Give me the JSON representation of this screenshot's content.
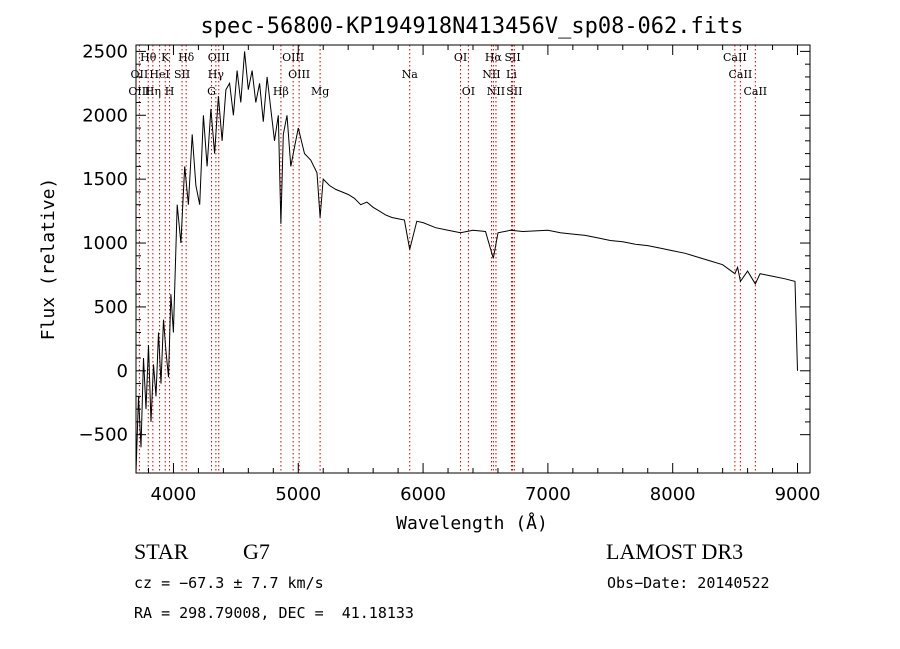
{
  "chart_data": {
    "type": "line",
    "title": "spec-56800-KP194918N413456V_sp08-062.fits",
    "xlabel": "Wavelength (Å)",
    "ylabel": "Flux (relative)",
    "xlim": [
      3700,
      9100
    ],
    "ylim": [
      -800,
      2550
    ],
    "xticks": [
      "4000",
      "5000",
      "6000",
      "7000",
      "8000",
      "9000"
    ],
    "yticks": [
      "−500",
      "0",
      "500",
      "1000",
      "1500",
      "2000",
      "2500"
    ],
    "grid": false,
    "series": [
      {
        "x": [
          3700,
          3720,
          3740,
          3760,
          3780,
          3800,
          3820,
          3840,
          3860,
          3880,
          3900,
          3920,
          3940,
          3960,
          3980,
          4000,
          4030,
          4060,
          4090,
          4120,
          4150,
          4180,
          4210,
          4240,
          4270,
          4300,
          4330,
          4360,
          4390,
          4420,
          4450,
          4480,
          4510,
          4540,
          4570,
          4600,
          4630,
          4660,
          4690,
          4720,
          4750,
          4780,
          4810,
          4840,
          4861,
          4880,
          4910,
          4940,
          4970,
          5000,
          5050,
          5100,
          5150,
          5175,
          5200,
          5250,
          5300,
          5350,
          5400,
          5450,
          5500,
          5550,
          5600,
          5650,
          5700,
          5750,
          5800,
          5850,
          5893,
          5950,
          6000,
          6100,
          6200,
          6300,
          6400,
          6500,
          6563,
          6600,
          6700,
          6800,
          6900,
          7000,
          7100,
          7200,
          7300,
          7400,
          7500,
          7600,
          7700,
          7800,
          7900,
          8000,
          8100,
          8200,
          8300,
          8400,
          8498,
          8520,
          8542,
          8600,
          8662,
          8700,
          8800,
          8900,
          8980,
          9000
        ],
        "y": [
          -800,
          -200,
          -600,
          100,
          -300,
          200,
          -400,
          50,
          -200,
          300,
          -100,
          400,
          150,
          -50,
          600,
          300,
          1300,
          1000,
          1600,
          1300,
          1850,
          1450,
          1300,
          2000,
          1600,
          2050,
          1700,
          2150,
          1800,
          2200,
          2250,
          2000,
          2350,
          2100,
          2500,
          2200,
          2350,
          2100,
          2250,
          1950,
          2300,
          2050,
          1800,
          2000,
          1150,
          1850,
          2000,
          1600,
          1750,
          1900,
          1700,
          1650,
          1550,
          1200,
          1500,
          1450,
          1420,
          1400,
          1380,
          1350,
          1300,
          1320,
          1280,
          1250,
          1220,
          1200,
          1190,
          1180,
          950,
          1170,
          1160,
          1120,
          1100,
          1080,
          1100,
          1090,
          880,
          1080,
          1100,
          1090,
          1095,
          1100,
          1080,
          1070,
          1060,
          1040,
          1020,
          1010,
          990,
          980,
          960,
          940,
          920,
          890,
          860,
          830,
          760,
          810,
          700,
          780,
          680,
          760,
          740,
          720,
          700,
          0
        ]
      }
    ],
    "line_labels": [
      {
        "text": "Hθ",
        "x": 3798,
        "row": 0
      },
      {
        "text": "K",
        "x": 3934,
        "row": 0
      },
      {
        "text": "Hδ",
        "x": 4102,
        "row": 0
      },
      {
        "text": "OIII",
        "x": 4363,
        "row": 0
      },
      {
        "text": "OIII",
        "x": 4959,
        "row": 0
      },
      {
        "text": "OI",
        "x": 6300,
        "row": 0
      },
      {
        "text": "Hα",
        "x": 6563,
        "row": 0
      },
      {
        "text": "SII",
        "x": 6717,
        "row": 0
      },
      {
        "text": "CaII",
        "x": 8498,
        "row": 0
      },
      {
        "text": "OII",
        "x": 3727,
        "row": 1
      },
      {
        "text": "HeI",
        "x": 3889,
        "row": 1
      },
      {
        "text": "SII",
        "x": 4069,
        "row": 1
      },
      {
        "text": "Hγ",
        "x": 4340,
        "row": 1
      },
      {
        "text": "OIII",
        "x": 5007,
        "row": 1
      },
      {
        "text": "Na",
        "x": 5893,
        "row": 1
      },
      {
        "text": "NII",
        "x": 6548,
        "row": 1
      },
      {
        "text": "Li",
        "x": 6708,
        "row": 1
      },
      {
        "text": "CaII",
        "x": 8542,
        "row": 1
      },
      {
        "text": "OIII",
        "x": 3727,
        "row": 2
      },
      {
        "text": "Hη",
        "x": 3835,
        "row": 2
      },
      {
        "text": "H",
        "x": 3969,
        "row": 2
      },
      {
        "text": "G",
        "x": 4305,
        "row": 2
      },
      {
        "text": "Hβ",
        "x": 4861,
        "row": 2
      },
      {
        "text": "Mg",
        "x": 5175,
        "row": 2
      },
      {
        "text": "OI",
        "x": 6363,
        "row": 2
      },
      {
        "text": "NII",
        "x": 6584,
        "row": 2
      },
      {
        "text": "SII",
        "x": 6731,
        "row": 2
      },
      {
        "text": "CaII",
        "x": 8662,
        "row": 2
      }
    ],
    "line_color": "#000000",
    "marker_color": "#cc0000"
  },
  "info": {
    "class": "STAR",
    "subclass": "G7",
    "survey": "LAMOST DR3",
    "cz": "cz = −67.3 ± 7.7 km/s",
    "obsdate": "Obs−Date: 20140522",
    "radec": "RA = 298.79008, DEC =  41.18133"
  }
}
